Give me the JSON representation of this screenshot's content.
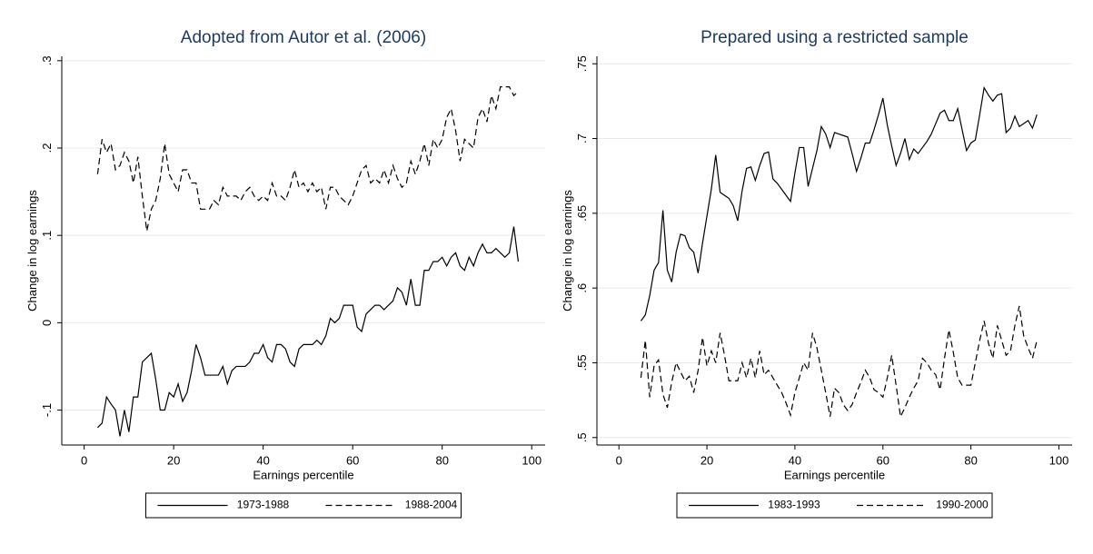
{
  "chart_data": [
    {
      "type": "line",
      "title": "Adopted from Autor et al. (2006)",
      "xlabel": "Earnings percentile",
      "ylabel": "Change in log earnings",
      "x": [
        3,
        4,
        5,
        6,
        7,
        8,
        9,
        10,
        11,
        12,
        13,
        14,
        15,
        16,
        17,
        18,
        19,
        20,
        21,
        22,
        23,
        24,
        25,
        26,
        27,
        28,
        29,
        30,
        31,
        32,
        33,
        34,
        35,
        36,
        37,
        38,
        39,
        40,
        41,
        42,
        43,
        44,
        45,
        46,
        47,
        48,
        49,
        50,
        51,
        52,
        53,
        54,
        55,
        56,
        57,
        58,
        59,
        60,
        61,
        62,
        63,
        64,
        65,
        66,
        67,
        68,
        69,
        70,
        71,
        72,
        73,
        74,
        75,
        76,
        77,
        78,
        79,
        80,
        81,
        82,
        83,
        84,
        85,
        86,
        87,
        88,
        89,
        90,
        91,
        92,
        93,
        94,
        95,
        96,
        97
      ],
      "series": [
        {
          "name": "1973-1988",
          "color": "#000000",
          "linestyle": "solid",
          "values": [
            -0.12,
            -0.115,
            -0.085,
            -0.093,
            -0.1,
            -0.13,
            -0.1,
            -0.125,
            -0.085,
            -0.085,
            -0.045,
            -0.04,
            -0.035,
            -0.065,
            -0.1,
            -0.1,
            -0.08,
            -0.085,
            -0.07,
            -0.09,
            -0.08,
            -0.055,
            -0.025,
            -0.04,
            -0.06,
            -0.06,
            -0.06,
            -0.06,
            -0.05,
            -0.07,
            -0.055,
            -0.05,
            -0.05,
            -0.05,
            -0.045,
            -0.035,
            -0.035,
            -0.025,
            -0.04,
            -0.045,
            -0.025,
            -0.025,
            -0.03,
            -0.045,
            -0.05,
            -0.03,
            -0.025,
            -0.025,
            -0.025,
            -0.02,
            -0.025,
            -0.015,
            0.005,
            0,
            0.005,
            0.02,
            0.02,
            0.02,
            -0.005,
            -0.01,
            0.01,
            0.015,
            0.02,
            0.02,
            0.015,
            0.02,
            0.025,
            0.04,
            0.035,
            0.02,
            0.05,
            0.02,
            0.02,
            0.06,
            0.06,
            0.07,
            0.07,
            0.075,
            0.065,
            0.075,
            0.08,
            0.065,
            0.06,
            0.075,
            0.065,
            0.08,
            0.09,
            0.08,
            0.08,
            0.085,
            0.08,
            0.075,
            0.08,
            0.11,
            0.07
          ]
        },
        {
          "name": "1988-2004",
          "color": "#000000",
          "linestyle": "dashed",
          "values": [
            0.17,
            0.21,
            0.195,
            0.205,
            0.175,
            0.18,
            0.195,
            0.185,
            0.16,
            0.19,
            0.145,
            0.105,
            0.13,
            0.14,
            0.165,
            0.205,
            0.17,
            0.16,
            0.15,
            0.175,
            0.175,
            0.16,
            0.16,
            0.13,
            0.13,
            0.13,
            0.14,
            0.135,
            0.155,
            0.145,
            0.145,
            0.145,
            0.14,
            0.15,
            0.155,
            0.145,
            0.14,
            0.145,
            0.14,
            0.16,
            0.145,
            0.145,
            0.14,
            0.155,
            0.175,
            0.155,
            0.16,
            0.15,
            0.16,
            0.15,
            0.155,
            0.13,
            0.155,
            0.155,
            0.145,
            0.14,
            0.135,
            0.145,
            0.16,
            0.175,
            0.18,
            0.16,
            0.165,
            0.16,
            0.175,
            0.16,
            0.18,
            0.165,
            0.155,
            0.16,
            0.185,
            0.17,
            0.185,
            0.205,
            0.18,
            0.21,
            0.2,
            0.21,
            0.235,
            0.245,
            0.22,
            0.185,
            0.21,
            0.205,
            0.2,
            0.235,
            0.245,
            0.23,
            0.26,
            0.245,
            0.27,
            0.27,
            0.27,
            0.26,
            0.265
          ]
        }
      ],
      "xlim": [
        -5,
        103
      ],
      "ylim": [
        -0.14,
        0.305
      ],
      "xticks": [
        0,
        20,
        40,
        60,
        80,
        100
      ],
      "yticks": [
        {
          "value": -0.1,
          "label": "-.1"
        },
        0,
        {
          "value": 0.1,
          "label": ".1"
        },
        {
          "value": 0.2,
          "label": ".2"
        },
        {
          "value": 0.3,
          "label": ".3"
        }
      ],
      "grid": true,
      "legend": "bottom"
    },
    {
      "type": "line",
      "title": "Prepared using a restricted sample",
      "xlabel": "Earnings percentile",
      "ylabel": "Change in log earnings",
      "x": [
        5,
        6,
        7,
        8,
        9,
        10,
        11,
        12,
        13,
        14,
        15,
        16,
        17,
        18,
        19,
        20,
        21,
        22,
        23,
        24,
        25,
        26,
        27,
        28,
        29,
        30,
        31,
        32,
        33,
        34,
        35,
        36,
        37,
        38,
        39,
        40,
        41,
        42,
        43,
        44,
        45,
        46,
        47,
        48,
        49,
        50,
        51,
        52,
        53,
        54,
        55,
        56,
        57,
        58,
        59,
        60,
        61,
        62,
        63,
        64,
        65,
        66,
        67,
        68,
        69,
        70,
        71,
        72,
        73,
        74,
        75,
        76,
        77,
        78,
        79,
        80,
        81,
        82,
        83,
        84,
        85,
        86,
        87,
        88,
        89,
        90,
        91,
        92,
        93,
        94,
        95
      ],
      "series": [
        {
          "name": "1983-1993",
          "color": "#000000",
          "linestyle": "solid",
          "values": [
            0.578,
            0.582,
            0.595,
            0.612,
            0.617,
            0.652,
            0.612,
            0.604,
            0.624,
            0.636,
            0.635,
            0.627,
            0.624,
            0.61,
            0.63,
            0.648,
            0.666,
            0.689,
            0.664,
            0.662,
            0.66,
            0.655,
            0.645,
            0.665,
            0.68,
            0.681,
            0.672,
            0.682,
            0.69,
            0.691,
            0.673,
            0.67,
            0.666,
            0.662,
            0.658,
            0.677,
            0.694,
            0.694,
            0.668,
            0.68,
            0.692,
            0.708,
            0.703,
            0.694,
            0.704,
            0.703,
            0.702,
            0.701,
            0.69,
            0.678,
            0.687,
            0.697,
            0.697,
            0.706,
            0.716,
            0.727,
            0.709,
            0.695,
            0.682,
            0.69,
            0.7,
            0.686,
            0.693,
            0.69,
            0.694,
            0.698,
            0.703,
            0.71,
            0.717,
            0.719,
            0.712,
            0.712,
            0.72,
            0.706,
            0.692,
            0.697,
            0.699,
            0.716,
            0.734,
            0.729,
            0.725,
            0.729,
            0.73,
            0.704,
            0.707,
            0.715,
            0.708,
            0.71,
            0.712,
            0.707,
            0.716
          ]
        },
        {
          "name": "1990-2000",
          "color": "#000000",
          "linestyle": "dashed",
          "values": [
            0.54,
            0.565,
            0.527,
            0.548,
            0.552,
            0.529,
            0.52,
            0.537,
            0.55,
            0.544,
            0.538,
            0.541,
            0.53,
            0.545,
            0.567,
            0.548,
            0.558,
            0.55,
            0.57,
            0.555,
            0.538,
            0.538,
            0.538,
            0.55,
            0.54,
            0.553,
            0.54,
            0.558,
            0.542,
            0.545,
            0.54,
            0.535,
            0.53,
            0.523,
            0.515,
            0.53,
            0.54,
            0.55,
            0.545,
            0.57,
            0.56,
            0.545,
            0.53,
            0.514,
            0.533,
            0.53,
            0.522,
            0.518,
            0.522,
            0.53,
            0.537,
            0.545,
            0.54,
            0.532,
            0.53,
            0.527,
            0.54,
            0.555,
            0.535,
            0.514,
            0.52,
            0.527,
            0.533,
            0.538,
            0.553,
            0.55,
            0.545,
            0.542,
            0.532,
            0.553,
            0.572,
            0.557,
            0.54,
            0.535,
            0.535,
            0.535,
            0.55,
            0.565,
            0.578,
            0.563,
            0.553,
            0.575,
            0.565,
            0.555,
            0.558,
            0.575,
            0.588,
            0.568,
            0.56,
            0.553,
            0.565
          ]
        }
      ],
      "xlim": [
        -5,
        103
      ],
      "ylim": [
        0.495,
        0.755
      ],
      "xticks": [
        0,
        20,
        40,
        60,
        80,
        100
      ],
      "yticks": [
        {
          "value": 0.5,
          "label": ".5"
        },
        {
          "value": 0.55,
          "label": ".55"
        },
        {
          "value": 0.6,
          "label": ".6"
        },
        {
          "value": 0.65,
          "label": ".65"
        },
        {
          "value": 0.7,
          "label": ".7"
        },
        {
          "value": 0.75,
          "label": ".75"
        }
      ],
      "grid": true,
      "legend": "bottom"
    }
  ]
}
